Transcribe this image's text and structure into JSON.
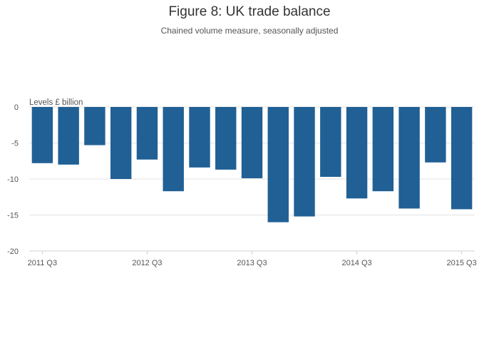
{
  "chart_data": {
    "type": "bar",
    "title": "Figure 8: UK trade balance",
    "subtitle": "Chained volume measure, seasonally adjusted",
    "ylabel": "Levels £ billion",
    "xlabel": "",
    "ylim": [
      -20,
      0
    ],
    "yticks": [
      0,
      -5,
      -10,
      -15,
      -20
    ],
    "grid": true,
    "colors": {
      "bar": "#206095",
      "grid": "#e3e3e3",
      "axis": "#d0d0d0"
    },
    "categories": [
      "2011 Q3",
      "2011 Q4",
      "2012 Q1",
      "2012 Q2",
      "2012 Q3",
      "2012 Q4",
      "2013 Q1",
      "2013 Q2",
      "2013 Q3",
      "2013 Q4",
      "2014 Q1",
      "2014 Q2",
      "2014 Q3",
      "2014 Q4",
      "2015 Q1",
      "2015 Q2",
      "2015 Q3"
    ],
    "x_tick_labels": [
      "2011 Q3",
      "2012 Q3",
      "2013 Q3",
      "2014 Q3",
      "2015 Q3"
    ],
    "values": [
      -7.8,
      -8.0,
      -5.3,
      -10.0,
      -7.3,
      -11.7,
      -8.4,
      -8.7,
      -9.9,
      -16.0,
      -15.2,
      -9.7,
      -12.7,
      -11.7,
      -14.1,
      -7.7,
      -14.2
    ]
  }
}
